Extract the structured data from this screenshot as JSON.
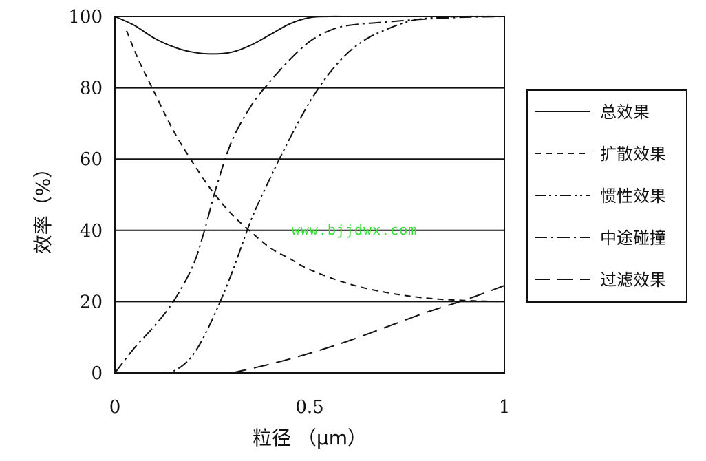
{
  "chart_data": {
    "type": "line",
    "title": "",
    "xlabel": "粒径 （μm）",
    "ylabel": "效率（%）",
    "xlim": [
      0,
      1
    ],
    "ylim": [
      0,
      100
    ],
    "x_ticks": [
      "0",
      "0.5",
      "1"
    ],
    "y_ticks": [
      "0",
      "20",
      "40",
      "60",
      "80",
      "100"
    ],
    "grid": "horizontal",
    "legend_position": "right",
    "watermark": "www.bjjdwx.com",
    "series": [
      {
        "name": "总效果",
        "dash": "solid",
        "x": [
          0,
          0.05,
          0.1,
          0.15,
          0.2,
          0.25,
          0.3,
          0.35,
          0.4,
          0.45,
          0.5,
          0.55,
          0.6,
          0.8,
          1.0
        ],
        "y": [
          100,
          97.5,
          94,
          91.5,
          90,
          89.5,
          90,
          92,
          95,
          98,
          99.7,
          100,
          100,
          100,
          100
        ]
      },
      {
        "name": "扩散效果",
        "dash": "short-dash",
        "x": [
          0.03,
          0.06,
          0.1,
          0.15,
          0.2,
          0.25,
          0.3,
          0.35,
          0.4,
          0.45,
          0.5,
          0.6,
          0.7,
          0.8,
          0.9,
          1.0
        ],
        "y": [
          96,
          88,
          79,
          68,
          59,
          51,
          44.5,
          39.5,
          35,
          32,
          29,
          25,
          22.5,
          21,
          20.3,
          20
        ]
      },
      {
        "name": "惯性效果",
        "dash": "dash-dot-dot",
        "x": [
          0.1,
          0.15,
          0.2,
          0.25,
          0.3,
          0.35,
          0.4,
          0.45,
          0.5,
          0.55,
          0.6,
          0.65,
          0.7,
          0.75,
          0.8,
          0.9,
          1.0
        ],
        "y": [
          0,
          0.5,
          5,
          15,
          28,
          43,
          55,
          66,
          76,
          84,
          90,
          94,
          96.5,
          98.5,
          99.5,
          100,
          100
        ]
      },
      {
        "name": "中途碰撞",
        "dash": "dash-dot",
        "x": [
          0,
          0.05,
          0.1,
          0.15,
          0.2,
          0.23,
          0.26,
          0.3,
          0.35,
          0.4,
          0.45,
          0.5,
          0.55,
          0.6,
          0.7,
          0.8,
          0.9,
          1.0
        ],
        "y": [
          0,
          7,
          13,
          20,
          30,
          40,
          52,
          65,
          75,
          82,
          88,
          93,
          96,
          97.5,
          98.5,
          99.3,
          99.8,
          100
        ]
      },
      {
        "name": "过滤效果",
        "dash": "long-dash",
        "x": [
          0.3,
          0.4,
          0.5,
          0.6,
          0.7,
          0.8,
          0.9,
          1.0
        ],
        "y": [
          0,
          2.5,
          5.5,
          9,
          13,
          17,
          20.5,
          24.5
        ]
      }
    ]
  }
}
